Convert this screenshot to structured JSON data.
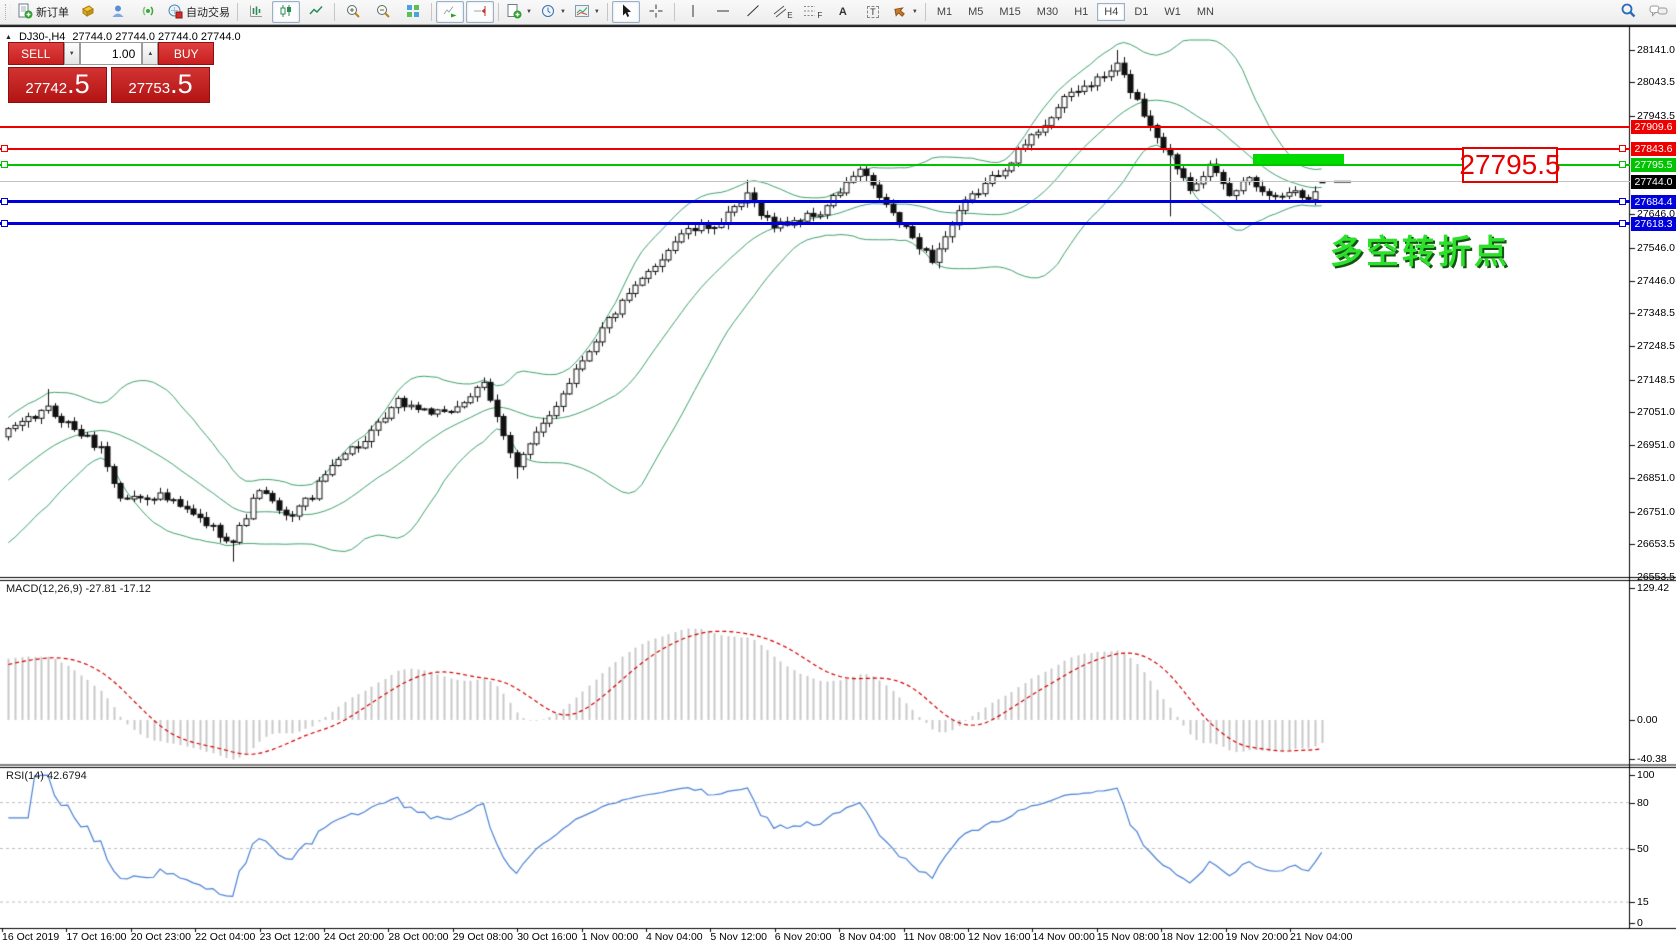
{
  "toolbar": {
    "new_order_label": "新订单",
    "autotrading_label": "自动交易",
    "tool_letters": {
      "channel": "E",
      "fibonacci": "F",
      "text": "A",
      "text_label": "T"
    },
    "timeframes": [
      "M1",
      "M5",
      "M15",
      "M30",
      "H1",
      "H4",
      "D1",
      "W1",
      "MN"
    ],
    "active_timeframe": "H4"
  },
  "icons": {
    "collapse": "▲",
    "caret_down": "▼",
    "caret_up": "▲",
    "dropdown": "▼"
  },
  "chart": {
    "symbol_period": "DJ30-,H4",
    "ohlc": "27744.0 27744.0 27744.0 27744.0"
  },
  "trade_panel": {
    "sell_label": "SELL",
    "buy_label": "BUY",
    "volume": "1.00",
    "sell_price_main": "27742",
    "sell_price_frac": ".5",
    "buy_price_main": "27753",
    "buy_price_frac": ".5"
  },
  "indicators": {
    "macd_label": "MACD(12,26,9) -27.81 -17.12",
    "rsi_label": "RSI(14) 42.6794"
  },
  "annotations": {
    "price_callout": "27795.5",
    "note": "多空转折点"
  },
  "price_axis": {
    "ticks": [
      28141.0,
      28043.5,
      27943.5,
      27646.0,
      27546.0,
      27446.0,
      27348.5,
      27248.5,
      27148.5,
      27051.0,
      26951.0,
      26851.0,
      26751.0,
      26653.5,
      26553.5
    ],
    "badges": [
      {
        "text": "27909.6",
        "price": 27909.6,
        "bg": "#ee0000"
      },
      {
        "text": "27843.6",
        "price": 27843.6,
        "bg": "#ee0000"
      },
      {
        "text": "27795.5",
        "price": 27795.5,
        "bg": "#00c400"
      },
      {
        "text": "27744.0",
        "price": 27744.0,
        "bg": "#000000"
      },
      {
        "text": "27684.4",
        "price": 27684.4,
        "bg": "#0000dd"
      },
      {
        "text": "27618.3",
        "price": 27618.3,
        "bg": "#0000dd"
      }
    ],
    "macd_ticks": [
      "129.42",
      "0.00",
      "-40.38"
    ],
    "rsi_ticks": [
      "100",
      "80",
      "50",
      "15",
      "0"
    ]
  },
  "time_axis": {
    "labels": [
      "16 Oct 2019",
      "17 Oct 16:00",
      "20 Oct 23:00",
      "22 Oct 04:00",
      "23 Oct 12:00",
      "24 Oct 20:00",
      "28 Oct 00:00",
      "29 Oct 08:00",
      "30 Oct 16:00",
      "1 Nov 00:00",
      "4 Nov 04:00",
      "5 Nov 12:00",
      "6 Nov 20:00",
      "8 Nov 04:00",
      "11 Nov 08:00",
      "12 Nov 16:00",
      "14 Nov 00:00",
      "15 Nov 08:00",
      "18 Nov 12:00",
      "19 Nov 20:00",
      "21 Nov 04:00"
    ]
  },
  "chart_data": {
    "type": "candlestick",
    "symbol": "DJ30-",
    "period": "H4",
    "price_axis_top": 28141.0,
    "price_axis_bottom": 26553.5,
    "last_ohlc": [
      27744.0,
      27744.0,
      27744.0,
      27744.0
    ],
    "bid": 27742.5,
    "ask": 27753.5,
    "bollinger": {
      "period": 20,
      "deviation": 2
    },
    "macd": {
      "fast": 12,
      "slow": 26,
      "signal": 9,
      "current": -27.81,
      "signal_current": -17.12,
      "scale_max": 129.42,
      "scale_min": -40.38
    },
    "rsi": {
      "period": 14,
      "current": 42.6794,
      "levels": [
        80,
        50,
        15
      ]
    },
    "hlines": [
      {
        "price": 27909.6,
        "color": "#ee0000",
        "width": 2,
        "handles": false
      },
      {
        "price": 27843.6,
        "color": "#ee0000",
        "width": 2,
        "handles": true
      },
      {
        "price": 27795.5,
        "color": "#00c400",
        "width": 2,
        "handles": true
      },
      {
        "price": 27744.0,
        "color": "#c3c3c3",
        "width": 1,
        "handles": false
      },
      {
        "price": 27684.4,
        "color": "#0000dd",
        "width": 3,
        "handles": true
      },
      {
        "price": 27618.3,
        "color": "#0000dd",
        "width": 3,
        "handles": true
      }
    ],
    "close_noise": 26,
    "anchors": [
      [
        -26,
        26560
      ],
      [
        -18,
        26700
      ],
      [
        -10,
        26850
      ],
      [
        0,
        26990
      ],
      [
        6,
        27060
      ],
      [
        14,
        26940
      ],
      [
        17,
        26790
      ],
      [
        23,
        26800
      ],
      [
        28,
        26740
      ],
      [
        34,
        26660
      ],
      [
        38,
        26820
      ],
      [
        42,
        26730
      ],
      [
        46,
        26800
      ],
      [
        50,
        26920
      ],
      [
        54,
        26960
      ],
      [
        59,
        27080
      ],
      [
        66,
        27040
      ],
      [
        72,
        27130
      ],
      [
        77,
        26890
      ],
      [
        82,
        27040
      ],
      [
        86,
        27180
      ],
      [
        91,
        27330
      ],
      [
        97,
        27470
      ],
      [
        102,
        27590
      ],
      [
        108,
        27620
      ],
      [
        112,
        27700
      ],
      [
        116,
        27610
      ],
      [
        123,
        27650
      ],
      [
        129,
        27780
      ],
      [
        135,
        27620
      ],
      [
        140,
        27510
      ],
      [
        145,
        27680
      ],
      [
        151,
        27790
      ],
      [
        156,
        27900
      ],
      [
        161,
        28010
      ],
      [
        166,
        28060
      ],
      [
        168,
        28095
      ],
      [
        172,
        27950
      ],
      [
        176,
        27820
      ],
      [
        179,
        27730
      ],
      [
        182,
        27790
      ],
      [
        185,
        27700
      ],
      [
        188,
        27760
      ],
      [
        191,
        27700
      ],
      [
        194,
        27720
      ],
      [
        197,
        27690
      ],
      [
        199,
        27744
      ]
    ],
    "wick_overrides": [
      {
        "i": 6,
        "high": 27120
      },
      {
        "i": 34,
        "low": 26600
      },
      {
        "i": 77,
        "low": 26850
      },
      {
        "i": 112,
        "high": 27750
      },
      {
        "i": 168,
        "high": 28141
      },
      {
        "i": 176,
        "low": 27640
      }
    ]
  }
}
